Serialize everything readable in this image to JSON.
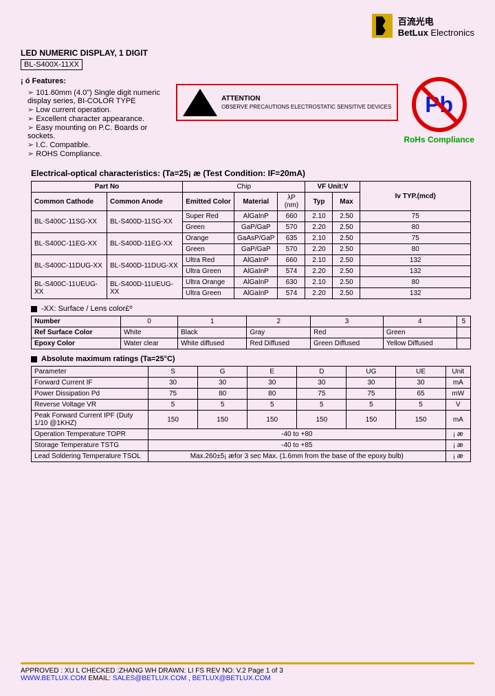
{
  "company": {
    "cn": "百流光电",
    "en_bold": "BetLux",
    "en_rest": " Electronics"
  },
  "title": "LED NUMERIC DISPLAY, 1 DIGIT",
  "part_number": "BL-S400X-11XX",
  "features": {
    "label": "¡ ó  Features:",
    "items": [
      "101.60mm (4.0\") Single digit numeric display series, BI-COLOR TYPE",
      "Low current operation.",
      "Excellent character appearance.",
      "Easy mounting on P.C. Boards or sockets.",
      "I.C. Compatible.",
      "ROHS Compliance."
    ]
  },
  "esd": {
    "title": "ATTENTION",
    "body": "OBSERVE PRECAUTIONS ELECTROSTATIC SENSITIVE DEVICES"
  },
  "pb": {
    "symbol": "Pb",
    "label": "RoHs Compliance"
  },
  "elec_title": "Electrical-optical characteristics: (Ta=25¡ æ  (Test Condition: IF=20mA)",
  "elec_headers": {
    "partno": "Part No",
    "chip": "Chip",
    "vf": "VF Unit:V",
    "iv": "Iv TYP.(mcd)",
    "cc": "Common Cathode",
    "ca": "Common Anode",
    "emitted": "Emitted Color",
    "material": "Material",
    "lp": "λP (nm)",
    "typ": "Typ",
    "max": "Max"
  },
  "elec_rows": [
    {
      "cc": "BL-S400C-11SG-XX",
      "ca": "BL-S400D-11SG-XX",
      "color": "Super Red",
      "mat": "AlGaInP",
      "lp": "660",
      "typ": "2.10",
      "max": "2.50",
      "iv": "75"
    },
    {
      "cc": "",
      "ca": "",
      "color": "Green",
      "mat": "GaP/GaP",
      "lp": "570",
      "typ": "2.20",
      "max": "2.50",
      "iv": "80"
    },
    {
      "cc": "BL-S400C-11EG-XX",
      "ca": "BL-S400D-11EG-XX",
      "color": "Orange",
      "mat": "GaAsP/GaP",
      "lp": "635",
      "typ": "2.10",
      "max": "2.50",
      "iv": "75"
    },
    {
      "cc": "",
      "ca": "",
      "color": "Green",
      "mat": "GaP/GaP",
      "lp": "570",
      "typ": "2.20",
      "max": "2.50",
      "iv": "80"
    },
    {
      "cc": "BL-S400C-11DUG-XX",
      "ca": "BL-S400D-11DUG-XX",
      "color": "Ultra Red",
      "mat": "AlGaInP",
      "lp": "660",
      "typ": "2.10",
      "max": "2.50",
      "iv": "132"
    },
    {
      "cc": "",
      "ca": "",
      "color": "Ultra Green",
      "mat": "AlGaInP",
      "lp": "574",
      "typ": "2.20",
      "max": "2.50",
      "iv": "132"
    },
    {
      "cc": "BL-S400C-11UEUG-XX",
      "ca": "BL-S400D-11UEUG-XX",
      "color": "Ultra Orange",
      "mat": "AlGaInP",
      "lp": "630",
      "typ": "2.10",
      "max": "2.50",
      "iv": "80"
    },
    {
      "cc": "",
      "ca": "",
      "color": "Ultra Green",
      "mat": "AlGaInP",
      "lp": "574",
      "typ": "2.20",
      "max": "2.50",
      "iv": "132"
    }
  ],
  "lens_title": "-XX: Surface / Lens color£º",
  "lens": {
    "headers": [
      "Number",
      "0",
      "1",
      "2",
      "3",
      "4",
      "5"
    ],
    "rows": [
      [
        "Ref Surface Color",
        "White",
        "Black",
        "Gray",
        "Red",
        "Green",
        ""
      ],
      [
        "Epoxy Color",
        "Water clear",
        "White diffused",
        "Red Diffused",
        "Green Diffused",
        "Yellow Diffused",
        ""
      ]
    ]
  },
  "abs_title": "Absolute maximum ratings (Ta=25°C)",
  "abs": {
    "headers": [
      "Parameter",
      "S",
      "G",
      "E",
      "D",
      "UG",
      "UE",
      "Unit"
    ],
    "rows": [
      [
        "Forward Current   IF",
        "30",
        "30",
        "30",
        "30",
        "30",
        "30",
        "mA"
      ],
      [
        "Power Dissipation Pd",
        "75",
        "80",
        "80",
        "75",
        "75",
        "65",
        "mW"
      ],
      [
        "Reverse Voltage VR",
        "5",
        "5",
        "5",
        "5",
        "5",
        "5",
        "V"
      ],
      [
        "Peak Forward Current IPF (Duty 1/10 @1KHZ)",
        "150",
        "150",
        "150",
        "150",
        "150",
        "150",
        "mA"
      ]
    ],
    "span_rows": [
      [
        "Operation Temperature TOPR",
        "-40 to +80",
        "¡ æ"
      ],
      [
        "Storage Temperature TSTG",
        "-40 to +85",
        "¡ æ"
      ],
      [
        "Lead Soldering Temperature TSOL",
        "Max.260±5¡ æfor 3 sec Max. (1.6mm from the base of the epoxy bulb)",
        "¡ æ"
      ]
    ]
  },
  "footer": {
    "line1": "APPROVED : XU L    CHECKED :ZHANG WH    DRAWN:  LI FS        REV NO: V.2      Page 1 of 3",
    "url": "WWW.BETLUX.COM",
    "email_label": "    EMAIL:  ",
    "email1": "SALES@BETLUX.COM",
    "sep": " , ",
    "email2": "BETLUX@BETLUX.COM"
  }
}
